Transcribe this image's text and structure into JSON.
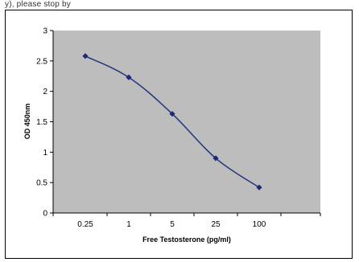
{
  "header": {
    "fragment": "y), please stop by"
  },
  "chart_data": {
    "type": "line",
    "title": "",
    "xlabel": "Free Testosterone (pg/ml)",
    "ylabel": "OD 450nm",
    "categories": [
      "0.25",
      "1",
      "5",
      "25",
      "100"
    ],
    "x": [
      0.25,
      1,
      5,
      25,
      100
    ],
    "series": [
      {
        "values": [
          2.58,
          2.23,
          1.63,
          0.9,
          0.42
        ]
      }
    ],
    "ylim": [
      0,
      3
    ],
    "yticks": [
      0,
      0.5,
      1,
      1.5,
      2,
      2.5,
      3
    ],
    "ytick_labels": [
      "0",
      "0.5",
      "1",
      "1.5",
      "2",
      "2.5",
      "3"
    ],
    "grid": false,
    "legend": "none",
    "colors": {
      "plot_area": "#bdbdbd",
      "line": "#26357c",
      "marker": "#1d2a78"
    }
  }
}
